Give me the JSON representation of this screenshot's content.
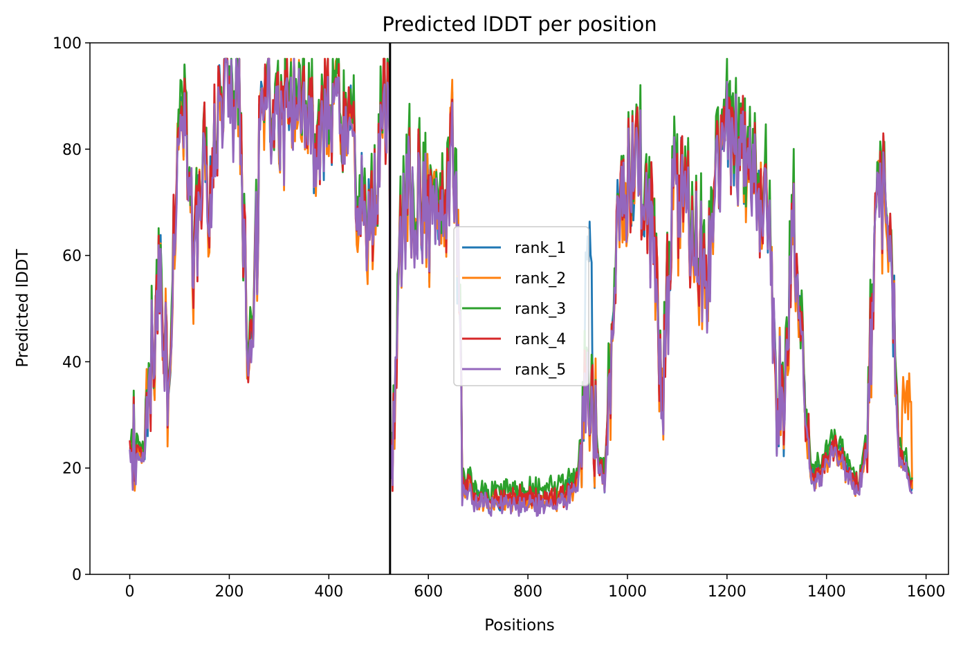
{
  "chart_data": {
    "type": "line",
    "title": "Predicted lDDT per position",
    "xlabel": "Positions",
    "ylabel": "Predicted lDDT",
    "xlim": [
      -80,
      1645
    ],
    "ylim": [
      0,
      100
    ],
    "xticks": [
      0,
      200,
      400,
      600,
      800,
      1000,
      1200,
      1400,
      1600
    ],
    "yticks": [
      0,
      20,
      40,
      60,
      80,
      100
    ],
    "grid": false,
    "legend_position": "center",
    "vline_x": 523,
    "vline_color": "#000000",
    "series": [
      {
        "name": "rank_1",
        "color": "#1f77b4",
        "offset": 0.0,
        "amp": 1.0,
        "seed": 1
      },
      {
        "name": "rank_2",
        "color": "#ff7f0e",
        "offset": -0.5,
        "amp": 1.1,
        "seed": 2
      },
      {
        "name": "rank_3",
        "color": "#2ca02c",
        "offset": 2.0,
        "amp": 1.0,
        "seed": 3
      },
      {
        "name": "rank_4",
        "color": "#d62728",
        "offset": 0.3,
        "amp": 1.0,
        "seed": 4
      },
      {
        "name": "rank_5",
        "color": "#9467bd",
        "offset": -1.0,
        "amp": 0.9,
        "seed": 5
      }
    ],
    "x_end": 1572,
    "base_profile": [
      [
        0,
        24
      ],
      [
        10,
        26
      ],
      [
        20,
        21
      ],
      [
        30,
        22
      ],
      [
        40,
        38
      ],
      [
        50,
        46
      ],
      [
        60,
        55
      ],
      [
        70,
        42
      ],
      [
        80,
        30
      ],
      [
        90,
        66
      ],
      [
        100,
        84
      ],
      [
        110,
        88
      ],
      [
        120,
        70
      ],
      [
        130,
        60
      ],
      [
        140,
        72
      ],
      [
        150,
        82
      ],
      [
        160,
        62
      ],
      [
        170,
        80
      ],
      [
        180,
        88
      ],
      [
        190,
        90
      ],
      [
        200,
        92
      ],
      [
        210,
        86
      ],
      [
        220,
        88
      ],
      [
        230,
        60
      ],
      [
        240,
        33
      ],
      [
        250,
        50
      ],
      [
        260,
        76
      ],
      [
        270,
        90
      ],
      [
        280,
        92
      ],
      [
        290,
        86
      ],
      [
        300,
        82
      ],
      [
        320,
        90
      ],
      [
        340,
        86
      ],
      [
        360,
        88
      ],
      [
        380,
        80
      ],
      [
        400,
        90
      ],
      [
        420,
        84
      ],
      [
        440,
        80
      ],
      [
        460,
        76
      ],
      [
        480,
        66
      ],
      [
        500,
        78
      ],
      [
        510,
        86
      ],
      [
        522,
        88
      ],
      [
        523,
        19
      ],
      [
        530,
        30
      ],
      [
        540,
        60
      ],
      [
        560,
        74
      ],
      [
        580,
        70
      ],
      [
        600,
        66
      ],
      [
        620,
        68
      ],
      [
        640,
        72
      ],
      [
        650,
        80
      ],
      [
        660,
        60
      ],
      [
        670,
        18
      ],
      [
        690,
        15
      ],
      [
        720,
        14
      ],
      [
        760,
        14
      ],
      [
        800,
        14
      ],
      [
        840,
        14
      ],
      [
        880,
        15
      ],
      [
        900,
        18
      ],
      [
        915,
        32
      ],
      [
        925,
        36
      ],
      [
        940,
        22
      ],
      [
        955,
        17
      ],
      [
        970,
        50
      ],
      [
        980,
        70
      ],
      [
        1000,
        74
      ],
      [
        1020,
        78
      ],
      [
        1040,
        72
      ],
      [
        1060,
        52
      ],
      [
        1070,
        28
      ],
      [
        1080,
        50
      ],
      [
        1090,
        74
      ],
      [
        1100,
        72
      ],
      [
        1120,
        70
      ],
      [
        1140,
        62
      ],
      [
        1160,
        58
      ],
      [
        1180,
        74
      ],
      [
        1200,
        84
      ],
      [
        1220,
        82
      ],
      [
        1240,
        80
      ],
      [
        1260,
        74
      ],
      [
        1280,
        70
      ],
      [
        1300,
        36
      ],
      [
        1310,
        34
      ],
      [
        1320,
        40
      ],
      [
        1330,
        68
      ],
      [
        1340,
        62
      ],
      [
        1350,
        44
      ],
      [
        1360,
        30
      ],
      [
        1370,
        18
      ],
      [
        1390,
        19
      ],
      [
        1410,
        24
      ],
      [
        1430,
        22
      ],
      [
        1450,
        18
      ],
      [
        1465,
        16
      ],
      [
        1480,
        24
      ],
      [
        1500,
        62
      ],
      [
        1510,
        72
      ],
      [
        1520,
        74
      ],
      [
        1530,
        60
      ],
      [
        1545,
        22
      ],
      [
        1560,
        20
      ],
      [
        1572,
        17
      ]
    ]
  }
}
